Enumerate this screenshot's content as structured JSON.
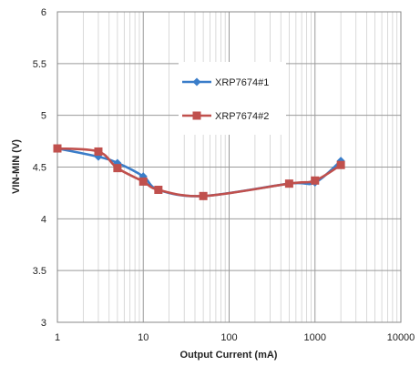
{
  "chart_data": {
    "type": "line",
    "xlabel": "Output Current (mA)",
    "ylabel": "VIN-MIN (V)",
    "xscale": "log",
    "xlim": [
      1,
      10000
    ],
    "ylim": [
      3,
      6
    ],
    "x_ticks": [
      "1",
      "10",
      "100",
      "1000",
      "10000"
    ],
    "y_ticks": [
      "3",
      "3.5",
      "4",
      "4.5",
      "5",
      "5.5",
      "6"
    ],
    "grid": true,
    "legend_position": "top-right",
    "series": [
      {
        "name": "XRP7674#1",
        "color": "#3a7dc9",
        "marker": "diamond",
        "x": [
          1,
          3,
          5,
          10,
          15,
          50,
          500,
          1000,
          2000
        ],
        "y": [
          4.68,
          4.6,
          4.54,
          4.41,
          4.28,
          4.22,
          4.34,
          4.35,
          4.56
        ]
      },
      {
        "name": "XRP7674#2",
        "color": "#c0504d",
        "marker": "square",
        "x": [
          1,
          3,
          5,
          10,
          15,
          50,
          500,
          1000,
          2000
        ],
        "y": [
          4.68,
          4.65,
          4.49,
          4.36,
          4.28,
          4.22,
          4.34,
          4.37,
          4.52
        ]
      }
    ]
  }
}
